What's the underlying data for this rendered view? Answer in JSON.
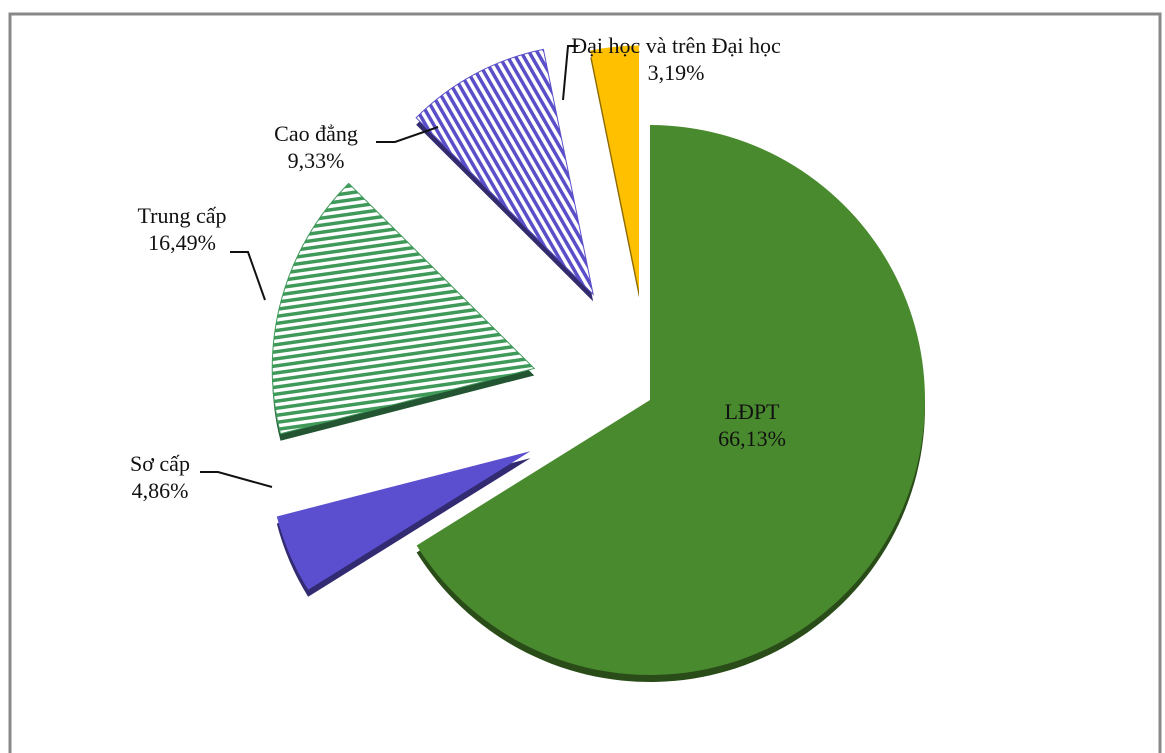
{
  "chart_data": {
    "type": "pie",
    "categories": [
      "LĐPT",
      "Sơ cấp",
      "Trung cấp",
      "Cao đẳng",
      "Đại học và trên Đại học"
    ],
    "values": [
      66.13,
      4.86,
      16.49,
      9.33,
      3.19
    ],
    "value_labels": [
      "66,13%",
      "4,86%",
      "16,49%",
      "9,33%",
      "3,19%"
    ],
    "colors": [
      "#4a8a2e",
      "#5b4fd0",
      "#3f9a5a",
      "#5a4fc8",
      "#ffc000"
    ],
    "hatch": [
      false,
      false,
      true,
      true,
      false
    ]
  }
}
